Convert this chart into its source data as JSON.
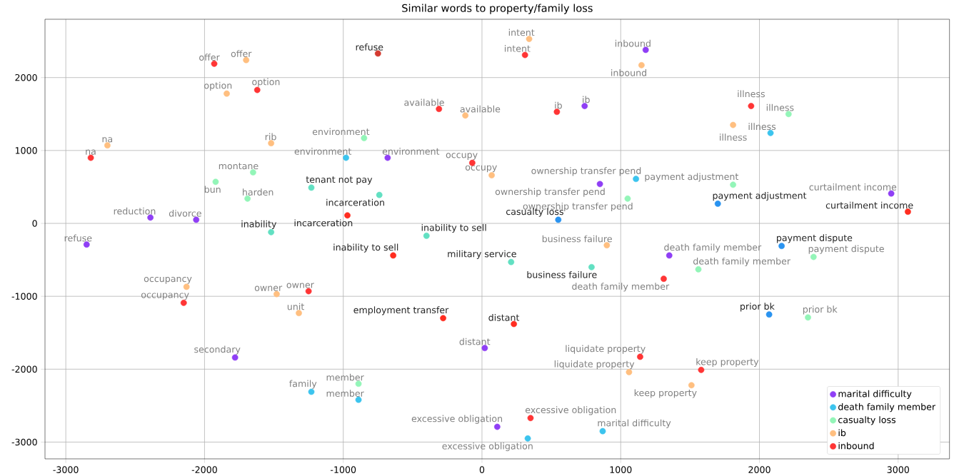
{
  "chart_data": {
    "type": "scatter",
    "title": "Similar words to property/family loss",
    "xlim": [
      -3150,
      3370
    ],
    "ylim": [
      -3230,
      2800
    ],
    "xticks": [
      -3000,
      -2000,
      -1000,
      0,
      1000,
      2000,
      3000
    ],
    "yticks": [
      -3000,
      -2000,
      -1000,
      0,
      1000,
      2000
    ],
    "grid": true,
    "legend": "bottom right",
    "marker": "circle",
    "series": [
      {
        "name": "marital difficulty",
        "color": "#8f3ff5",
        "x": [
          -2850,
          -2390,
          -2060,
          -680,
          740,
          1180,
          850,
          2950,
          1350,
          -1780,
          20,
          110
        ],
        "values": [
          -290,
          80,
          50,
          900,
          1610,
          2380,
          540,
          410,
          -440,
          -1840,
          -1710,
          -2790
        ],
        "value_labels": [
          "refuse",
          "reduction",
          "divorce",
          "environment",
          "ib",
          "inbound",
          "ownership transfer pend",
          "curtailment income",
          "death family member",
          "secondary",
          "distant",
          "excessive obligation"
        ]
      },
      {
        "name": "death family member",
        "color": "#3cc4ee",
        "x": [
          -980,
          2080,
          1110,
          -1230,
          -890,
          330,
          870
        ],
        "values": [
          900,
          1240,
          610,
          -2310,
          -2420,
          -2950,
          -2850
        ],
        "value_labels": [
          "environment",
          "illness",
          "ownership transfer pend",
          "family",
          "member",
          "excessive obligation",
          "marital difficulty"
        ]
      },
      {
        "name": "casualty loss",
        "color": "#93f5b8",
        "x": [
          -850,
          -1650,
          -1920,
          -1690,
          2210,
          1810,
          1050,
          1560,
          2390,
          2350,
          -890
        ],
        "values": [
          1170,
          700,
          570,
          340,
          1500,
          530,
          340,
          -630,
          -460,
          -1290,
          -2200
        ],
        "value_labels": [
          "environment",
          "montane",
          "bun",
          "harden",
          "illness",
          "payment adjustment",
          "ownership transfer pend",
          "death family member",
          "payment dispute",
          "prior bk",
          "member"
        ]
      },
      {
        "name": "ib",
        "color": "#ffbf80",
        "x": [
          -1700,
          -1840,
          -2700,
          -1520,
          -120,
          340,
          1150,
          70,
          1810,
          900,
          1060,
          1510,
          -2130,
          -1480,
          -1320
        ],
        "values": [
          2240,
          1780,
          1070,
          1100,
          1480,
          2530,
          2170,
          660,
          1350,
          -300,
          -2040,
          -2220,
          -870,
          -970,
          -1230
        ],
        "value_labels": [
          "offer",
          "option",
          "na",
          "rib",
          "available",
          "intent",
          "inbound",
          "occupy",
          "illness",
          "business failure",
          "liquidate property",
          "keep property",
          "occupancy",
          "owner",
          "unit"
        ]
      },
      {
        "name": "inbound",
        "color": "#ff3535",
        "x": [
          -1930,
          -1620,
          -2820,
          -310,
          310,
          540,
          -70,
          1940,
          1310,
          1140,
          1580,
          350,
          -2150,
          -1250
        ],
        "values": [
          2190,
          1830,
          900,
          1570,
          2310,
          1530,
          830,
          1610,
          -760,
          -1830,
          -2010,
          -2670,
          -1090,
          -930
        ],
        "value_labels": [
          "offer",
          "option",
          "na",
          "available",
          "intent",
          "ib",
          "occupy",
          "illness",
          "death family member",
          "liquidate property",
          "keep property",
          "excessive obligation",
          "occupancy",
          "owner"
        ]
      },
      {
        "colors": [
          "#d43a30",
          "#62e0c2",
          "#62e0c2",
          "#ff2d20",
          "#62e0c2",
          "#62e0c2",
          "#ff2d20",
          "#62e0c2",
          "#62e0c2",
          "#2a93f0",
          "#2a93f0",
          "#ff2d20",
          "#2a93f0",
          "#2a93f0",
          "#ff2d20",
          "#ff2d20"
        ],
        "x": [
          -750,
          -1230,
          -740,
          -970,
          -1520,
          -400,
          -640,
          210,
          790,
          550,
          1700,
          3070,
          2160,
          2070,
          -280,
          230
        ],
        "values": [
          2330,
          490,
          390,
          110,
          -120,
          -170,
          -440,
          -530,
          -600,
          50,
          270,
          160,
          -310,
          -1250,
          -1300,
          -1380
        ],
        "value_labels": [
          "refuse",
          "tenant not pay",
          "incarceration",
          "incarceration",
          "inability",
          "inability to sell",
          "inability to sell",
          "military service",
          "business failure",
          "casualty loss",
          "payment adjustment",
          "curtailment income",
          "payment dispute",
          "prior bk",
          "employment transfer",
          "distant"
        ]
      }
    ]
  }
}
